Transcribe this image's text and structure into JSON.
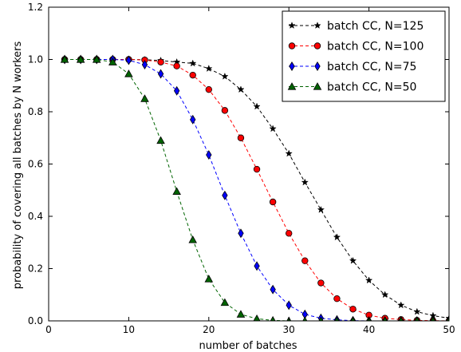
{
  "chart_data": {
    "type": "line",
    "title": "",
    "xlabel": "number of batches",
    "ylabel": "probability of covering all batches by N workers",
    "xlim": [
      0,
      50
    ],
    "ylim": [
      0.0,
      1.2
    ],
    "xticks": [
      0,
      10,
      20,
      30,
      40,
      50
    ],
    "yticks": [
      0.0,
      0.2,
      0.4,
      0.6,
      0.8,
      1.0,
      1.2
    ],
    "xtick_labels": [
      "0",
      "10",
      "20",
      "30",
      "40",
      "50"
    ],
    "ytick_labels": [
      "0.0",
      "0.2",
      "0.4",
      "0.6",
      "0.8",
      "1.0",
      "1.2"
    ],
    "grid": false,
    "legend_position": "top-right",
    "x": [
      2,
      4,
      6,
      8,
      10,
      12,
      14,
      16,
      18,
      20,
      22,
      24,
      26,
      28,
      30,
      32,
      34,
      36,
      38,
      40,
      42,
      44,
      46,
      48,
      50
    ],
    "series": [
      {
        "name": "batch CC, N=125",
        "color": "#000000",
        "marker": "star",
        "values": [
          1.0,
          1.0,
          1.0,
          1.0,
          1.0,
          0.999,
          0.996,
          0.99,
          0.985,
          0.965,
          0.935,
          0.885,
          0.82,
          0.735,
          0.64,
          0.53,
          0.425,
          0.32,
          0.23,
          0.155,
          0.1,
          0.06,
          0.035,
          0.02,
          0.01
        ]
      },
      {
        "name": "batch CC, N=100",
        "color": "#ff0000",
        "marker": "circle",
        "values": [
          1.0,
          1.0,
          1.0,
          1.0,
          1.0,
          0.998,
          0.99,
          0.975,
          0.94,
          0.885,
          0.805,
          0.7,
          0.58,
          0.455,
          0.335,
          0.23,
          0.145,
          0.085,
          0.045,
          0.022,
          0.01,
          0.005,
          0.002,
          0.001,
          0.0
        ]
      },
      {
        "name": "batch CC, N=75",
        "color": "#0000ff",
        "marker": "thin-diamond",
        "values": [
          1.0,
          1.0,
          1.0,
          1.0,
          0.997,
          0.98,
          0.945,
          0.88,
          0.77,
          0.635,
          0.48,
          0.335,
          0.21,
          0.12,
          0.06,
          0.025,
          0.01,
          0.004,
          0.001,
          0.0,
          0.0,
          0.0,
          0.0,
          0.0,
          0.0
        ]
      },
      {
        "name": "batch CC, N=50",
        "color": "#006400",
        "marker": "triangle-up",
        "values": [
          1.0,
          1.0,
          1.0,
          0.99,
          0.945,
          0.85,
          0.69,
          0.495,
          0.31,
          0.16,
          0.07,
          0.025,
          0.008,
          0.002,
          0.0,
          0.0,
          0.0,
          0.0,
          0.0,
          0.0,
          0.0,
          0.0,
          0.0,
          0.0,
          0.0
        ]
      }
    ]
  }
}
